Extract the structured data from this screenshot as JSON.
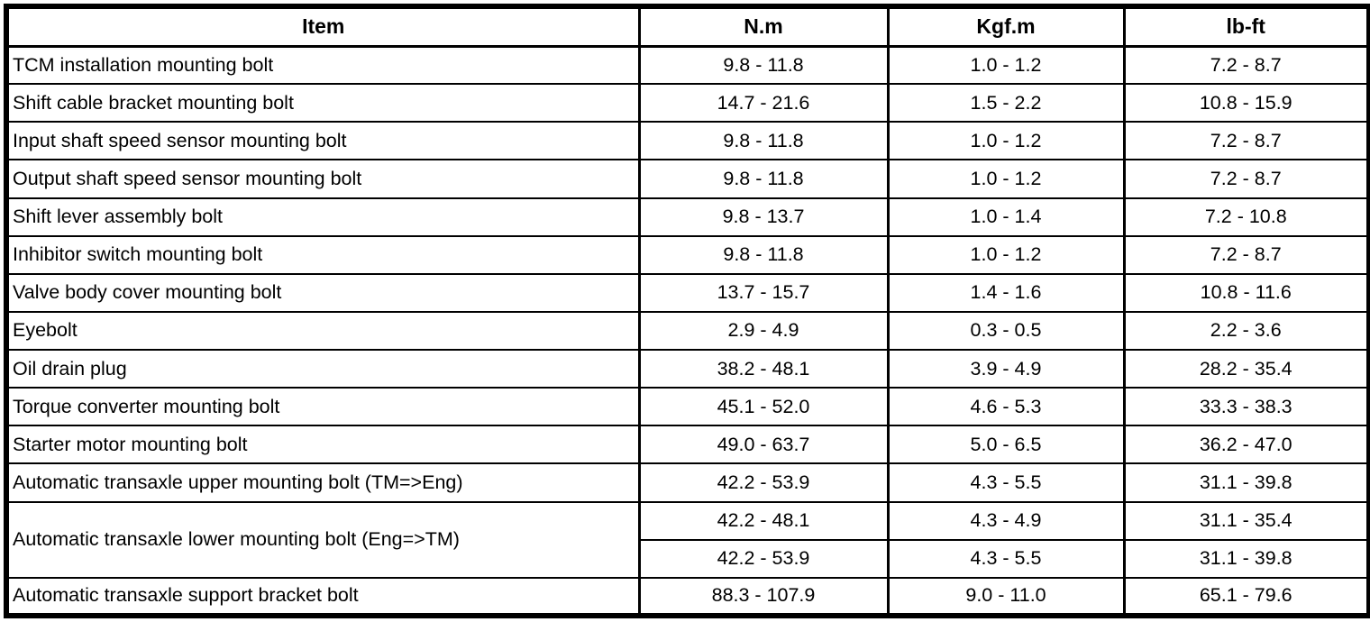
{
  "table": {
    "columns": {
      "item": "Item",
      "nm": "N.m",
      "kgfm": "Kgf.m",
      "lbft": "lb-ft"
    },
    "rows": [
      {
        "item": "TCM installation mounting bolt",
        "nm": "9.8 - 11.8",
        "kgfm": "1.0 - 1.2",
        "lbft": "7.2 - 8.7"
      },
      {
        "item": "Shift cable bracket mounting bolt",
        "nm": "14.7 - 21.6",
        "kgfm": "1.5 - 2.2",
        "lbft": "10.8 - 15.9"
      },
      {
        "item": "Input shaft speed sensor mounting bolt",
        "nm": "9.8 - 11.8",
        "kgfm": "1.0 - 1.2",
        "lbft": "7.2 - 8.7"
      },
      {
        "item": "Output shaft speed sensor mounting bolt",
        "nm": "9.8 - 11.8",
        "kgfm": "1.0 - 1.2",
        "lbft": "7.2 - 8.7"
      },
      {
        "item": "Shift lever assembly bolt",
        "nm": "9.8 - 13.7",
        "kgfm": "1.0 - 1.4",
        "lbft": "7.2 - 10.8"
      },
      {
        "item": "Inhibitor switch mounting bolt",
        "nm": "9.8 - 11.8",
        "kgfm": "1.0 - 1.2",
        "lbft": "7.2 - 8.7"
      },
      {
        "item": "Valve body cover mounting bolt",
        "nm": "13.7 - 15.7",
        "kgfm": "1.4 - 1.6",
        "lbft": "10.8 - 11.6"
      },
      {
        "item": "Eyebolt",
        "nm": "2.9 - 4.9",
        "kgfm": "0.3 - 0.5",
        "lbft": "2.2 - 3.6"
      },
      {
        "item": "Oil drain plug",
        "nm": "38.2 - 48.1",
        "kgfm": "3.9 - 4.9",
        "lbft": "28.2 - 35.4"
      },
      {
        "item": "Torque converter mounting bolt",
        "nm": "45.1 - 52.0",
        "kgfm": "4.6 - 5.3",
        "lbft": "33.3 - 38.3"
      },
      {
        "item": "Starter motor mounting bolt",
        "nm": "49.0 - 63.7",
        "kgfm": "5.0 - 6.5",
        "lbft": "36.2 - 47.0"
      },
      {
        "item": "Automatic transaxle upper mounting bolt (TM=>Eng)",
        "nm": "42.2 - 53.9",
        "kgfm": "4.3 - 5.5",
        "lbft": "31.1 - 39.8"
      },
      {
        "item": "Automatic transaxle lower mounting bolt (Eng=>TM)",
        "span": 2,
        "sub": [
          {
            "nm": "42.2 - 48.1",
            "kgfm": "4.3 - 4.9",
            "lbft": "31.1 - 35.4"
          },
          {
            "nm": "42.2 - 53.9",
            "kgfm": "4.3 - 5.5",
            "lbft": "31.1 - 39.8"
          }
        ]
      },
      {
        "item": "Automatic transaxle support bracket bolt",
        "nm": "88.3 - 107.9",
        "kgfm": "9.0 - 11.0",
        "lbft": "65.1 - 79.6"
      }
    ]
  }
}
